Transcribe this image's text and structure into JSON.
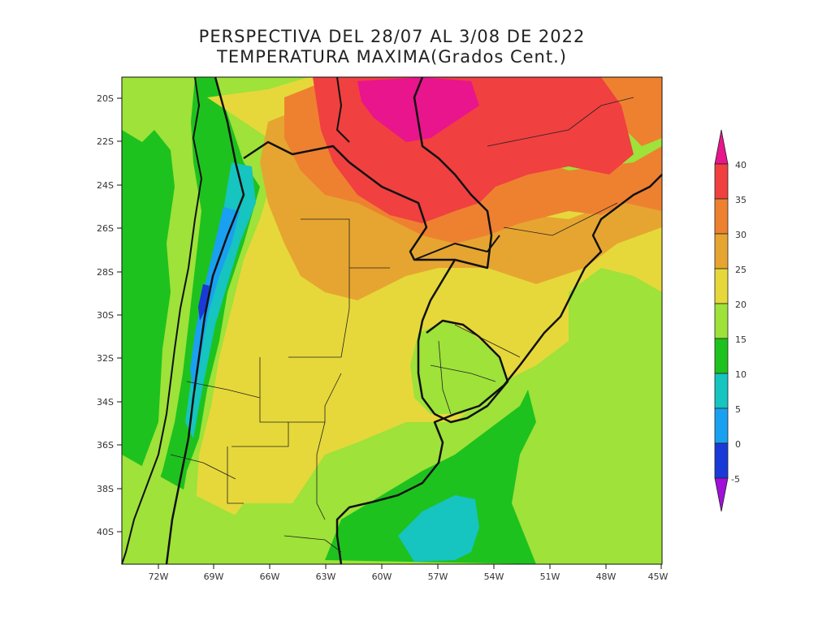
{
  "title": {
    "line1": "PERSPECTIVA DEL 28/07 AL 3/08 DE 2022",
    "line2": "TEMPERATURA MAXIMA(Grados Cent.)"
  },
  "axes": {
    "lat_labels": [
      "20S",
      "22S",
      "24S",
      "26S",
      "28S",
      "30S",
      "32S",
      "34S",
      "36S",
      "38S",
      "40S"
    ],
    "lon_labels": [
      "72W",
      "69W",
      "66W",
      "63W",
      "60W",
      "57W",
      "54W",
      "51W",
      "48W",
      "45W"
    ]
  },
  "colorbar": {
    "labels": [
      "40",
      "35",
      "30",
      "25",
      "20",
      "15",
      "10",
      "5",
      "0",
      "-5"
    ],
    "colors": [
      "#e8158c",
      "#f04040",
      "#ee8130",
      "#e6a530",
      "#e6d83a",
      "#9ee23a",
      "#1ec21e",
      "#16c4c0",
      "#1aa0f0",
      "#1a3ad8",
      "#a010d8"
    ]
  },
  "palette": {
    "magenta": "#e8158c",
    "red": "#f04040",
    "orange": "#ee8130",
    "amber": "#e6a530",
    "yellow": "#e6d83a",
    "lightgreen": "#9ee23a",
    "green": "#1ec21e",
    "cyan": "#16c4c0",
    "sky": "#1aa0f0",
    "blue": "#1a3ad8"
  }
}
